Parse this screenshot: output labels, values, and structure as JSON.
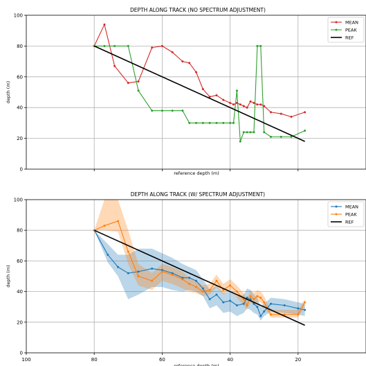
{
  "chart_data": [
    {
      "type": "line",
      "title": "DEPTH ALONG TRACK (NO SPECTRUM ADJUSTMENT)",
      "xlabel": "reference depth (m)",
      "ylabel": "depth (m)",
      "xlim": [
        100,
        0
      ],
      "ylim": [
        0,
        100
      ],
      "x_ticks": [
        80,
        60,
        40,
        20
      ],
      "x_tick_labels_visible": false,
      "y_ticks": [
        0,
        20,
        40,
        60,
        80,
        100
      ],
      "y_tick_labels": [
        "0",
        "20",
        "40",
        "60",
        "80",
        "100"
      ],
      "grid": true,
      "legend": "top-right",
      "series": [
        {
          "name": "MEAN",
          "color": "#d62728",
          "marker": "dot",
          "x": [
            80,
            77,
            74,
            70,
            67,
            63,
            60,
            57,
            54,
            52,
            50,
            48,
            46,
            44,
            42,
            40,
            39,
            38,
            37,
            36,
            35,
            34,
            33,
            32,
            31,
            30,
            28,
            25,
            22,
            18
          ],
          "y": [
            80,
            94,
            67,
            56,
            57,
            79,
            80,
            76,
            70,
            69,
            63,
            52,
            47,
            48,
            45,
            43,
            42,
            43,
            42,
            41,
            40,
            44,
            43,
            42,
            42,
            41,
            37,
            36,
            34,
            37
          ]
        },
        {
          "name": "PEAK",
          "color": "#2ca02c",
          "marker": "dot",
          "x": [
            80,
            77,
            74,
            70,
            67,
            63,
            60,
            57,
            54,
            52,
            50,
            48,
            46,
            44,
            42,
            40,
            39,
            38,
            37,
            36,
            35,
            34,
            33,
            32,
            31,
            30,
            28,
            25,
            22,
            18
          ],
          "y": [
            80,
            80,
            80,
            80,
            51,
            38,
            38,
            38,
            38,
            30,
            30,
            30,
            30,
            30,
            30,
            30,
            30,
            51,
            18,
            24,
            24,
            24,
            24,
            80,
            80,
            24,
            21,
            21,
            21,
            25
          ]
        },
        {
          "name": "REF",
          "color": "#000000",
          "marker": "none",
          "x": [
            80,
            18
          ],
          "y": [
            80,
            18
          ]
        }
      ]
    },
    {
      "type": "line",
      "title": "DEPTH ALONG TRACK (W/ SPECTRUM ADJUSTMENT)",
      "xlabel": "reference depth (m)",
      "ylabel": "depth (m)",
      "xlim": [
        100,
        0
      ],
      "ylim": [
        0,
        100
      ],
      "x_ticks": [
        100,
        80,
        60,
        40,
        20
      ],
      "x_tick_labels": [
        "100",
        "80",
        "60",
        "40",
        "20"
      ],
      "y_ticks": [
        0,
        20,
        40,
        60,
        80,
        100
      ],
      "y_tick_labels": [
        "0",
        "20",
        "40",
        "60",
        "80",
        "100"
      ],
      "grid": true,
      "legend": "top-right",
      "series": [
        {
          "name": "MEAN",
          "color": "#1f77b4",
          "marker": "dot",
          "x": [
            80,
            76,
            73,
            70,
            67,
            63,
            60,
            57,
            54,
            52,
            50,
            48,
            46,
            44,
            42,
            40,
            38,
            36,
            35,
            34,
            33,
            32,
            31,
            30,
            28,
            24,
            20,
            18
          ],
          "y": [
            80,
            64,
            56,
            52,
            53,
            55,
            54,
            52,
            49,
            49,
            47,
            42,
            35,
            38,
            33,
            34,
            31,
            32,
            36,
            35,
            32,
            30,
            24,
            27,
            32,
            31,
            29,
            28
          ],
          "band_lower": [
            80,
            59,
            50,
            35,
            38,
            43,
            43,
            41,
            40,
            41,
            40,
            37,
            29,
            31,
            26,
            27,
            24,
            26,
            29,
            28,
            26,
            25,
            21,
            24,
            27,
            26,
            25,
            24
          ],
          "band_upper": [
            80,
            71,
            64,
            64,
            68,
            68,
            65,
            62,
            58,
            56,
            54,
            48,
            41,
            44,
            39,
            40,
            37,
            38,
            42,
            41,
            38,
            36,
            30,
            32,
            36,
            35,
            33,
            32
          ]
        },
        {
          "name": "PEAK",
          "color": "#ff7f0e",
          "marker": "dot",
          "x": [
            80,
            77,
            73,
            70,
            67,
            63,
            60,
            57,
            54,
            52,
            50,
            48,
            46,
            44,
            42,
            40,
            38,
            36,
            35,
            34,
            33,
            32,
            31,
            30,
            28,
            24,
            20,
            18
          ],
          "y": [
            80,
            83,
            86,
            66,
            50,
            47,
            53,
            51,
            48,
            45,
            43,
            40,
            41,
            47,
            41,
            44,
            40,
            35,
            31,
            37,
            35,
            37,
            36,
            33,
            25,
            25,
            25,
            33
          ],
          "band_lower": [
            80,
            80,
            79,
            58,
            44,
            41,
            47,
            45,
            42,
            40,
            39,
            37,
            38,
            43,
            38,
            41,
            36,
            31,
            28,
            33,
            31,
            33,
            33,
            30,
            23,
            23,
            23,
            30
          ],
          "band_upper": [
            80,
            100,
            100,
            80,
            58,
            52,
            58,
            56,
            53,
            49,
            47,
            44,
            45,
            51,
            45,
            48,
            44,
            39,
            35,
            41,
            39,
            41,
            40,
            37,
            28,
            28,
            28,
            35
          ]
        },
        {
          "name": "REF",
          "color": "#000000",
          "marker": "none",
          "x": [
            80,
            18
          ],
          "y": [
            80,
            18
          ]
        }
      ]
    }
  ]
}
